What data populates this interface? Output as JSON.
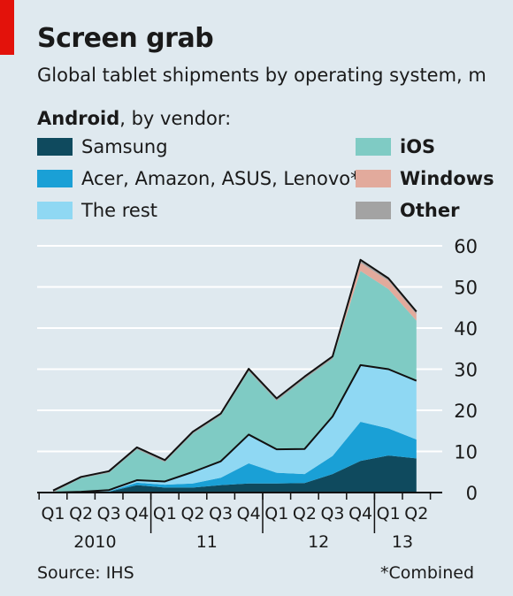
{
  "header": {
    "title": "Screen grab",
    "subtitle": "Global tablet shipments by operating system, m"
  },
  "legend": {
    "heading_bold": "Android",
    "heading_rest": ", by vendor:",
    "items": [
      {
        "label": "Samsung",
        "color": "#0f4a5e"
      },
      {
        "label": "Acer, Amazon, ASUS, Lenovo*",
        "color": "#1aa0d6"
      },
      {
        "label": "The rest",
        "color": "#8fd8f3"
      },
      {
        "label": "iOS",
        "color": "#7fcbc4"
      },
      {
        "label": "Windows",
        "color": "#e2aa9c"
      },
      {
        "label": "Other",
        "color": "#a3a3a3"
      }
    ]
  },
  "footer": {
    "source": "Source: IHS",
    "footnote": "*Combined"
  },
  "chart_data": {
    "type": "area",
    "stacked": true,
    "categories": [
      "Q1",
      "Q2",
      "Q3",
      "Q4",
      "Q1",
      "Q2",
      "Q3",
      "Q4",
      "Q1",
      "Q2",
      "Q3",
      "Q4",
      "Q1",
      "Q2"
    ],
    "years": [
      {
        "label": "2010",
        "start": 0,
        "end": 3
      },
      {
        "label": "11",
        "start": 4,
        "end": 7
      },
      {
        "label": "12",
        "start": 8,
        "end": 11
      },
      {
        "label": "13",
        "start": 12,
        "end": 13
      }
    ],
    "ylim": [
      0,
      60
    ],
    "yticks": [
      0,
      10,
      20,
      30,
      40,
      50,
      60
    ],
    "series": [
      {
        "name": "Samsung",
        "color": "#0f4a5e",
        "values": [
          0,
          0,
          0.2,
          1.8,
          1.2,
          1.2,
          1.8,
          2.2,
          2.2,
          2.3,
          4.5,
          7.7,
          9.0,
          8.3
        ]
      },
      {
        "name": "Acer, Amazon, ASUS, Lenovo*",
        "color": "#1aa0d6",
        "values": [
          0,
          0,
          0.1,
          0.6,
          0.7,
          1.0,
          1.8,
          4.9,
          2.6,
          2.2,
          4.4,
          9.5,
          6.6,
          4.6
        ]
      },
      {
        "name": "The rest",
        "color": "#8fd8f3",
        "values": [
          0,
          0.2,
          0.3,
          0.6,
          0.8,
          2.8,
          4.0,
          7.0,
          5.7,
          6.1,
          9.6,
          13.8,
          14.4,
          14.3
        ]
      },
      {
        "name": "iOS",
        "color": "#7fcbc4",
        "values": [
          0,
          3.3,
          4.2,
          7.5,
          4.7,
          9.3,
          11.1,
          15.4,
          11.8,
          17.0,
          14.0,
          22.9,
          19.5,
          14.6
        ]
      },
      {
        "name": "Windows",
        "color": "#e2aa9c",
        "values": [
          0,
          0,
          0,
          0,
          0,
          0,
          0,
          0,
          0,
          0,
          0,
          2.0,
          2.0,
          1.6
        ]
      },
      {
        "name": "Other",
        "color": "#a3a3a3",
        "values": [
          0.5,
          0.3,
          0.4,
          0.5,
          0.5,
          0.5,
          0.5,
          0.6,
          0.6,
          0.6,
          0.6,
          0.7,
          0.6,
          0.6
        ]
      }
    ]
  }
}
